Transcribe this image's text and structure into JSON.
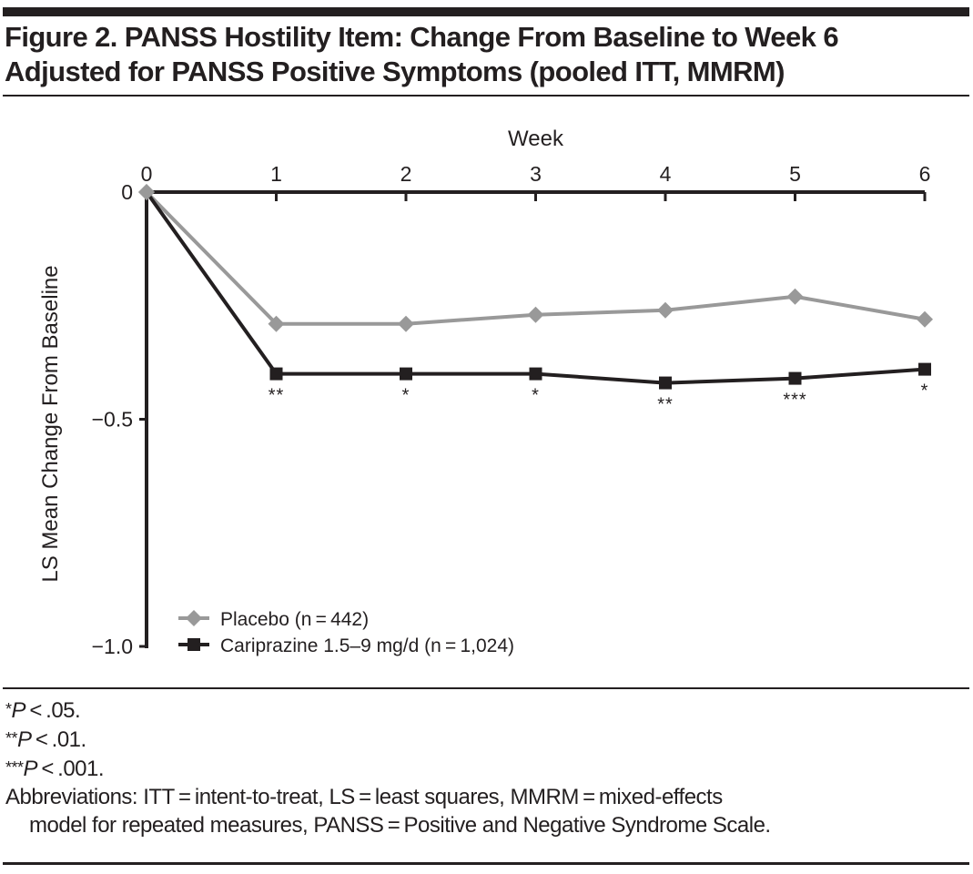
{
  "figure": {
    "title_line1": "Figure 2. PANSS Hostility Item: Change From Baseline to Week 6",
    "title_line2": "Adjusted for PANSS Positive Symptoms (pooled ITT, MMRM)"
  },
  "chart_data": {
    "type": "line",
    "title": "PANSS Hostility Item: Change From Baseline to Week 6 Adjusted for PANSS Positive Symptoms (pooled ITT, MMRM)",
    "xlabel": "Week",
    "ylabel": "LS Mean Change From Baseline",
    "x": [
      0,
      1,
      2,
      3,
      4,
      5,
      6
    ],
    "x_tick_labels": [
      "0",
      "1",
      "2",
      "3",
      "4",
      "5",
      "6"
    ],
    "xlim": [
      0,
      6
    ],
    "x_axis_position": "top",
    "ylim": [
      -1.0,
      0
    ],
    "y_ticks": [
      0,
      -0.5,
      -1.0
    ],
    "y_tick_labels": [
      "0",
      "−0.5",
      "−1.0"
    ],
    "grid": false,
    "legend_position": "bottom-left",
    "series": [
      {
        "name": "Placebo (n = 442)",
        "marker": "diamond",
        "color": "#999999",
        "values": [
          0,
          -0.29,
          -0.29,
          -0.27,
          -0.26,
          -0.23,
          -0.28
        ]
      },
      {
        "name": "Cariprazine 1.5–9 mg/d (n = 1,024)",
        "marker": "square",
        "color": "#231f20",
        "values": [
          0,
          -0.4,
          -0.4,
          -0.4,
          -0.42,
          -0.41,
          -0.39
        ],
        "significance": [
          "",
          "**",
          "*",
          "*",
          "**",
          "***",
          "*"
        ]
      }
    ]
  },
  "footnotes": {
    "p05": {
      "stars": "*",
      "p": "P",
      "rest": " < .05."
    },
    "p01": {
      "stars": "**",
      "p": "P",
      "rest": " < .01."
    },
    "p001": {
      "stars": "***",
      "p": "P",
      "rest": " < .001."
    },
    "abbrev_line1": "Abbreviations: ITT = intent-to-treat, LS = least squares, MMRM = mixed-effects",
    "abbrev_line2": "model for repeated measures, PANSS = Positive and Negative Syndrome Scale."
  }
}
